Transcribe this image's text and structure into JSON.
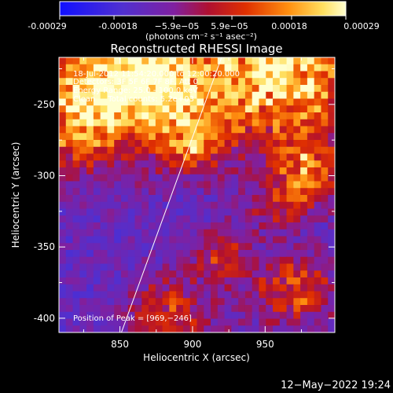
{
  "colorbar": {
    "tick_labels": [
      "-0.00029",
      "-0.00018",
      "−5.9e−05",
      "5.9e−05",
      "0.00018",
      "0.00029"
    ],
    "tick_values": [
      -0.00029,
      -0.00018,
      -5.9e-05,
      5.9e-05,
      0.00018,
      0.00029
    ],
    "range": [
      -0.00029,
      0.00029
    ],
    "unit_label": "(photons cm⁻² s⁻¹ asec⁻²)"
  },
  "chart_data": {
    "type": "heatmap",
    "title": "Reconstructed RHESSI Image",
    "xlabel": "Heliocentric X (arcsec)",
    "ylabel": "Heliocentric Y (arcsec)",
    "xlim": [
      808,
      998
    ],
    "ylim": [
      -410,
      -217
    ],
    "x_ticks": [
      850,
      900,
      950
    ],
    "y_ticks": [
      -250,
      -300,
      -350,
      -400
    ],
    "limb_line": [
      [
        851,
        -410
      ],
      [
        920,
        -217
      ]
    ],
    "annotations": [
      "18-Jul-2012 11:54:20.000 to 12:00:20.000",
      "Detectors: 3F 5F 6F 7F 8F, Att 0",
      "Energy Range: 25.0 - 100.0 keV",
      "Clean     Total counts: 5.2e+03"
    ],
    "peak_label": "Position of Peak = [969,−246]",
    "peak_position": [
      969,
      -246
    ],
    "colors": {
      "background": "#000000",
      "axis": "#ffffff"
    }
  },
  "footer": {
    "date": "12−May−2022 19:24"
  }
}
